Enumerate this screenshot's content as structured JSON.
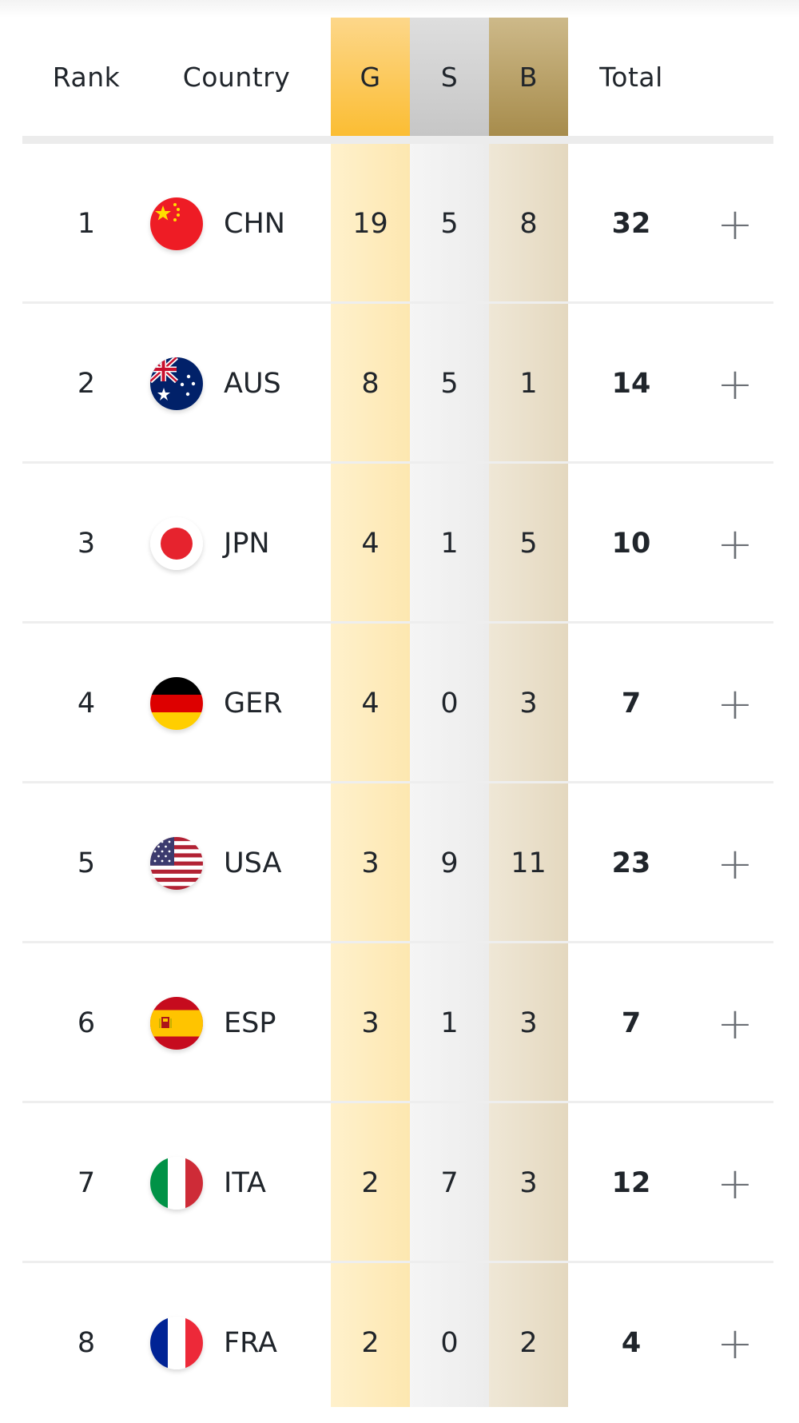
{
  "header": {
    "rank": "Rank",
    "country": "Country",
    "gold": "G",
    "silver": "S",
    "bronze": "B",
    "total": "Total"
  },
  "rows": [
    {
      "rank": "1",
      "code": "CHN",
      "gold": "19",
      "silver": "5",
      "bronze": "8",
      "total": "32",
      "flag": "china-flag-icon",
      "expand": "+"
    },
    {
      "rank": "2",
      "code": "AUS",
      "gold": "8",
      "silver": "5",
      "bronze": "1",
      "total": "14",
      "flag": "australia-flag-icon",
      "expand": "+"
    },
    {
      "rank": "3",
      "code": "JPN",
      "gold": "4",
      "silver": "1",
      "bronze": "5",
      "total": "10",
      "flag": "japan-flag-icon",
      "expand": "+"
    },
    {
      "rank": "4",
      "code": "GER",
      "gold": "4",
      "silver": "0",
      "bronze": "3",
      "total": "7",
      "flag": "germany-flag-icon",
      "expand": "+"
    },
    {
      "rank": "5",
      "code": "USA",
      "gold": "3",
      "silver": "9",
      "bronze": "11",
      "total": "23",
      "flag": "usa-flag-icon",
      "expand": "+"
    },
    {
      "rank": "6",
      "code": "ESP",
      "gold": "3",
      "silver": "1",
      "bronze": "3",
      "total": "7",
      "flag": "spain-flag-icon",
      "expand": "+"
    },
    {
      "rank": "7",
      "code": "ITA",
      "gold": "2",
      "silver": "7",
      "bronze": "3",
      "total": "12",
      "flag": "italy-flag-icon",
      "expand": "+"
    },
    {
      "rank": "8",
      "code": "FRA",
      "gold": "2",
      "silver": "0",
      "bronze": "2",
      "total": "4",
      "flag": "france-flag-icon",
      "expand": "+"
    }
  ],
  "colors": {
    "gold": "#fbbd33",
    "silver": "#c6c6c6",
    "bronze": "#a78c4c"
  }
}
